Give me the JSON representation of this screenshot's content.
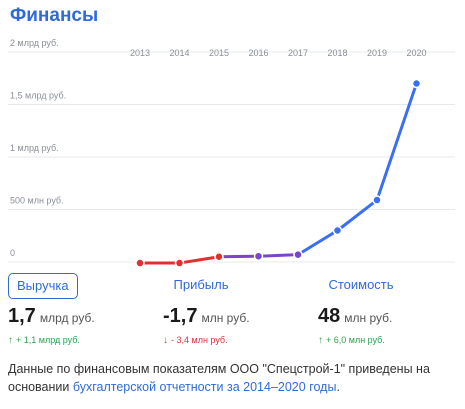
{
  "header": {
    "title": "Финансы"
  },
  "chart_data": {
    "type": "line",
    "x": [
      "2013",
      "2014",
      "2015",
      "2016",
      "2017",
      "2018",
      "2019",
      "2020"
    ],
    "y_ticks": [
      "0",
      "500 млн руб.",
      "1 млрд руб.",
      "1,5 млрд руб.",
      "2 млрд руб."
    ],
    "ylim": [
      0,
      2000
    ],
    "grid": "horizontal",
    "series": [
      {
        "values": [
          null,
          null,
          40,
          45,
          55,
          300,
          590,
          1700
        ],
        "color": "#3b6ff2"
      }
    ],
    "segment_colors": [
      "#e03131",
      "#e03131",
      "#7b45c9",
      "#7b45c9",
      "#3b6ff2",
      "#3b6ff2",
      "#3b6ff2"
    ],
    "points_y": [
      -10,
      -10,
      50,
      55,
      70,
      300,
      590,
      1700
    ]
  },
  "tabs": [
    {
      "label": "Выручка",
      "active": true
    },
    {
      "label": "Прибыль",
      "active": false
    },
    {
      "label": "Стоимость",
      "active": false
    }
  ],
  "metrics": [
    {
      "value": "1,7",
      "unit": "млрд руб.",
      "change": "+ 1,1 млрд руб.",
      "direction": "up"
    },
    {
      "value": "-1,7",
      "unit": "млн руб.",
      "change": "- 3,4 млн руб.",
      "direction": "down"
    },
    {
      "value": "48",
      "unit": "млн руб.",
      "change": "+ 6,0 млн руб.",
      "direction": "up"
    }
  ],
  "note": {
    "text": "Данные по финансовым показателям ООО \"Спецстрой-1\" приведены на основании ",
    "link": "бухгалтерской отчетности за 2014–2020 годы",
    "end": "."
  }
}
